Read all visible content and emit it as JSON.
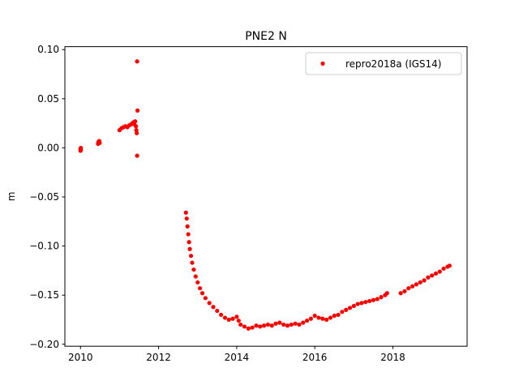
{
  "chart_data": {
    "type": "scatter",
    "title": "PNE2 N",
    "xlabel": "",
    "ylabel": "m",
    "xlim": [
      2009.6,
      2019.9
    ],
    "ylim": [
      -0.202,
      0.103
    ],
    "xticks": [
      2010,
      2012,
      2014,
      2016,
      2018
    ],
    "xtick_labels": [
      "2010",
      "2012",
      "2014",
      "2016",
      "2018"
    ],
    "yticks": [
      0.1,
      0.05,
      0.0,
      -0.05,
      -0.1,
      -0.15,
      -0.2
    ],
    "ytick_labels": [
      "0.10",
      "0.05",
      "0.00",
      "−0.05",
      "−0.10",
      "−0.15",
      "−0.20"
    ],
    "legend_position": "top-right",
    "grid": false,
    "series": [
      {
        "name": "repro2018a (IGS14)",
        "color": "#ff0000",
        "marker": "circle",
        "points": [
          [
            2010.0,
            -0.001
          ],
          [
            2010.0,
            -0.003
          ],
          [
            2010.01,
            0.0
          ],
          [
            2010.01,
            -0.002
          ],
          [
            2010.45,
            0.004
          ],
          [
            2010.46,
            0.006
          ],
          [
            2010.47,
            0.005
          ],
          [
            2010.48,
            0.007
          ],
          [
            2010.49,
            0.005
          ],
          [
            2011.0,
            0.018
          ],
          [
            2011.05,
            0.02
          ],
          [
            2011.1,
            0.021
          ],
          [
            2011.15,
            0.022
          ],
          [
            2011.2,
            0.021
          ],
          [
            2011.25,
            0.023
          ],
          [
            2011.3,
            0.024
          ],
          [
            2011.33,
            0.025
          ],
          [
            2011.36,
            0.026
          ],
          [
            2011.38,
            0.024
          ],
          [
            2011.4,
            0.027
          ],
          [
            2011.42,
            0.022
          ],
          [
            2011.43,
            0.018
          ],
          [
            2011.44,
            0.015
          ],
          [
            2011.45,
            0.088
          ],
          [
            2011.46,
            0.038
          ],
          [
            2011.45,
            -0.008
          ],
          [
            2012.7,
            -0.066
          ],
          [
            2012.72,
            -0.072
          ],
          [
            2012.74,
            -0.08
          ],
          [
            2012.76,
            -0.088
          ],
          [
            2012.78,
            -0.096
          ],
          [
            2012.8,
            -0.103
          ],
          [
            2012.83,
            -0.11
          ],
          [
            2012.86,
            -0.117
          ],
          [
            2012.9,
            -0.124
          ],
          [
            2012.95,
            -0.131
          ],
          [
            2013.0,
            -0.137
          ],
          [
            2013.06,
            -0.143
          ],
          [
            2013.12,
            -0.148
          ],
          [
            2013.2,
            -0.153
          ],
          [
            2013.3,
            -0.158
          ],
          [
            2013.4,
            -0.162
          ],
          [
            2013.5,
            -0.166
          ],
          [
            2013.6,
            -0.17
          ],
          [
            2013.7,
            -0.173
          ],
          [
            2013.8,
            -0.175
          ],
          [
            2013.9,
            -0.174
          ],
          [
            2014.0,
            -0.172
          ],
          [
            2014.05,
            -0.176
          ],
          [
            2014.1,
            -0.18
          ],
          [
            2014.2,
            -0.182
          ],
          [
            2014.3,
            -0.184
          ],
          [
            2014.4,
            -0.183
          ],
          [
            2014.5,
            -0.181
          ],
          [
            2014.6,
            -0.182
          ],
          [
            2014.7,
            -0.181
          ],
          [
            2014.8,
            -0.18
          ],
          [
            2014.9,
            -0.181
          ],
          [
            2015.0,
            -0.179
          ],
          [
            2015.1,
            -0.178
          ],
          [
            2015.2,
            -0.18
          ],
          [
            2015.3,
            -0.181
          ],
          [
            2015.4,
            -0.18
          ],
          [
            2015.5,
            -0.179
          ],
          [
            2015.6,
            -0.18
          ],
          [
            2015.7,
            -0.178
          ],
          [
            2015.8,
            -0.176
          ],
          [
            2015.9,
            -0.174
          ],
          [
            2016.0,
            -0.171
          ],
          [
            2016.1,
            -0.173
          ],
          [
            2016.2,
            -0.174
          ],
          [
            2016.3,
            -0.175
          ],
          [
            2016.4,
            -0.173
          ],
          [
            2016.5,
            -0.171
          ],
          [
            2016.6,
            -0.17
          ],
          [
            2016.7,
            -0.167
          ],
          [
            2016.8,
            -0.165
          ],
          [
            2016.9,
            -0.163
          ],
          [
            2017.0,
            -0.161
          ],
          [
            2017.1,
            -0.159
          ],
          [
            2017.2,
            -0.158
          ],
          [
            2017.3,
            -0.157
          ],
          [
            2017.4,
            -0.156
          ],
          [
            2017.5,
            -0.155
          ],
          [
            2017.6,
            -0.154
          ],
          [
            2017.7,
            -0.152
          ],
          [
            2017.8,
            -0.15
          ],
          [
            2017.85,
            -0.148
          ],
          [
            2018.2,
            -0.148
          ],
          [
            2018.3,
            -0.146
          ],
          [
            2018.4,
            -0.143
          ],
          [
            2018.5,
            -0.141
          ],
          [
            2018.6,
            -0.139
          ],
          [
            2018.7,
            -0.137
          ],
          [
            2018.8,
            -0.135
          ],
          [
            2018.9,
            -0.132
          ],
          [
            2019.0,
            -0.13
          ],
          [
            2019.1,
            -0.128
          ],
          [
            2019.2,
            -0.126
          ],
          [
            2019.3,
            -0.123
          ],
          [
            2019.4,
            -0.121
          ],
          [
            2019.45,
            -0.12
          ]
        ]
      }
    ]
  }
}
